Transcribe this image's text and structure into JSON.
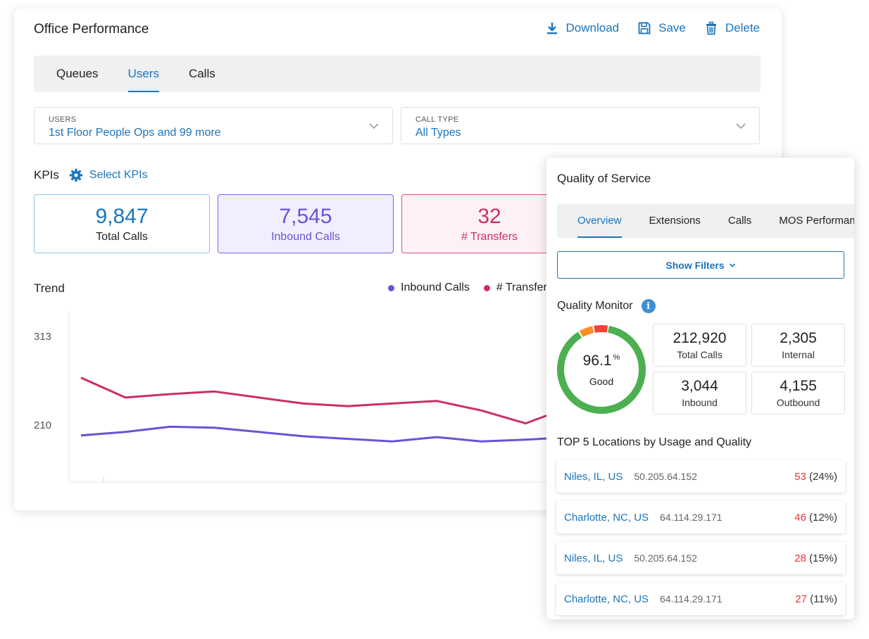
{
  "office": {
    "title": "Office Performance",
    "actions": {
      "download": "Download",
      "save": "Save",
      "delete": "Delete"
    },
    "tabs": [
      "Queues",
      "Users",
      "Calls"
    ],
    "active_tab": "Users",
    "filters": {
      "users": {
        "label": "USERS",
        "value": "1st Floor People Ops and 99 more"
      },
      "call_type": {
        "label": "CALL TYPE",
        "value": "All Types"
      }
    },
    "kpis": {
      "label": "KPIs",
      "select_label": "Select KPIs",
      "items": [
        {
          "value": "9,847",
          "label": "Total Calls"
        },
        {
          "value": "7,545",
          "label": "Inbound Calls"
        },
        {
          "value": "32",
          "label": "# Transfers"
        }
      ]
    },
    "trend": {
      "title": "Trend",
      "legend": [
        {
          "name": "Inbound Calls",
          "color": "#6a52d9"
        },
        {
          "name": "# Transfers",
          "color": "#cc2e67"
        }
      ]
    }
  },
  "chart_data": {
    "type": "line",
    "title": "Trend",
    "y_ticks": [
      313,
      210
    ],
    "ylim": [
      144,
      313
    ],
    "x": [
      0,
      1,
      2,
      3,
      4,
      5,
      6,
      7,
      8,
      9,
      10,
      11,
      12,
      13,
      14,
      15,
      16
    ],
    "series": [
      {
        "name": "Inbound Calls",
        "color": "#6a52d9",
        "values": [
          198,
          202,
          208,
          207,
          202,
          197,
          194,
          191,
          196,
          191,
          193,
          196,
          198,
          200,
          202,
          204,
          206
        ]
      },
      {
        "name": "# Transfers",
        "color": "#cc2e67",
        "values": [
          265,
          242,
          246,
          249,
          242,
          235,
          232,
          235,
          238,
          227,
          212,
          231,
          226,
          221,
          216,
          212,
          210
        ]
      }
    ]
  },
  "qos": {
    "title": "Quality of Service",
    "tabs": [
      "Overview",
      "Extensions",
      "Calls",
      "MOS Performance"
    ],
    "active_tab": "Overview",
    "show_filters": "Show Filters",
    "monitor": {
      "title": "Quality Monitor",
      "info_glyph": "i",
      "gauge": {
        "percent": 96.1,
        "value": "96.1",
        "unit": "%",
        "label": "Good",
        "segments": [
          {
            "fraction": 0.889,
            "color": "#4caf50"
          },
          {
            "fraction": 0.055,
            "color": "#ff8f1f"
          },
          {
            "fraction": 0.056,
            "color": "#f44336"
          }
        ]
      },
      "stats": [
        {
          "value": "212,920",
          "label": "Total Calls"
        },
        {
          "value": "2,305",
          "label": "Internal"
        },
        {
          "value": "3,044",
          "label": "Inbound"
        },
        {
          "value": "4,155",
          "label": "Outbound"
        }
      ]
    },
    "top5": {
      "title": "TOP 5 Locations by Usage and Quality",
      "rows": [
        {
          "name": "Niles, IL, US",
          "ip": "50.205.64.152",
          "count": "53",
          "pct": "(24%)"
        },
        {
          "name": "Charlotte, NC, US",
          "ip": "64.114.29.171",
          "count": "46",
          "pct": "(12%)"
        },
        {
          "name": "Niles, IL, US",
          "ip": "50.205.64.152",
          "count": "28",
          "pct": "(15%)"
        },
        {
          "name": "Charlotte, NC, US",
          "ip": "64.114.29.171",
          "count": "27",
          "pct": "(11%)"
        }
      ]
    }
  }
}
